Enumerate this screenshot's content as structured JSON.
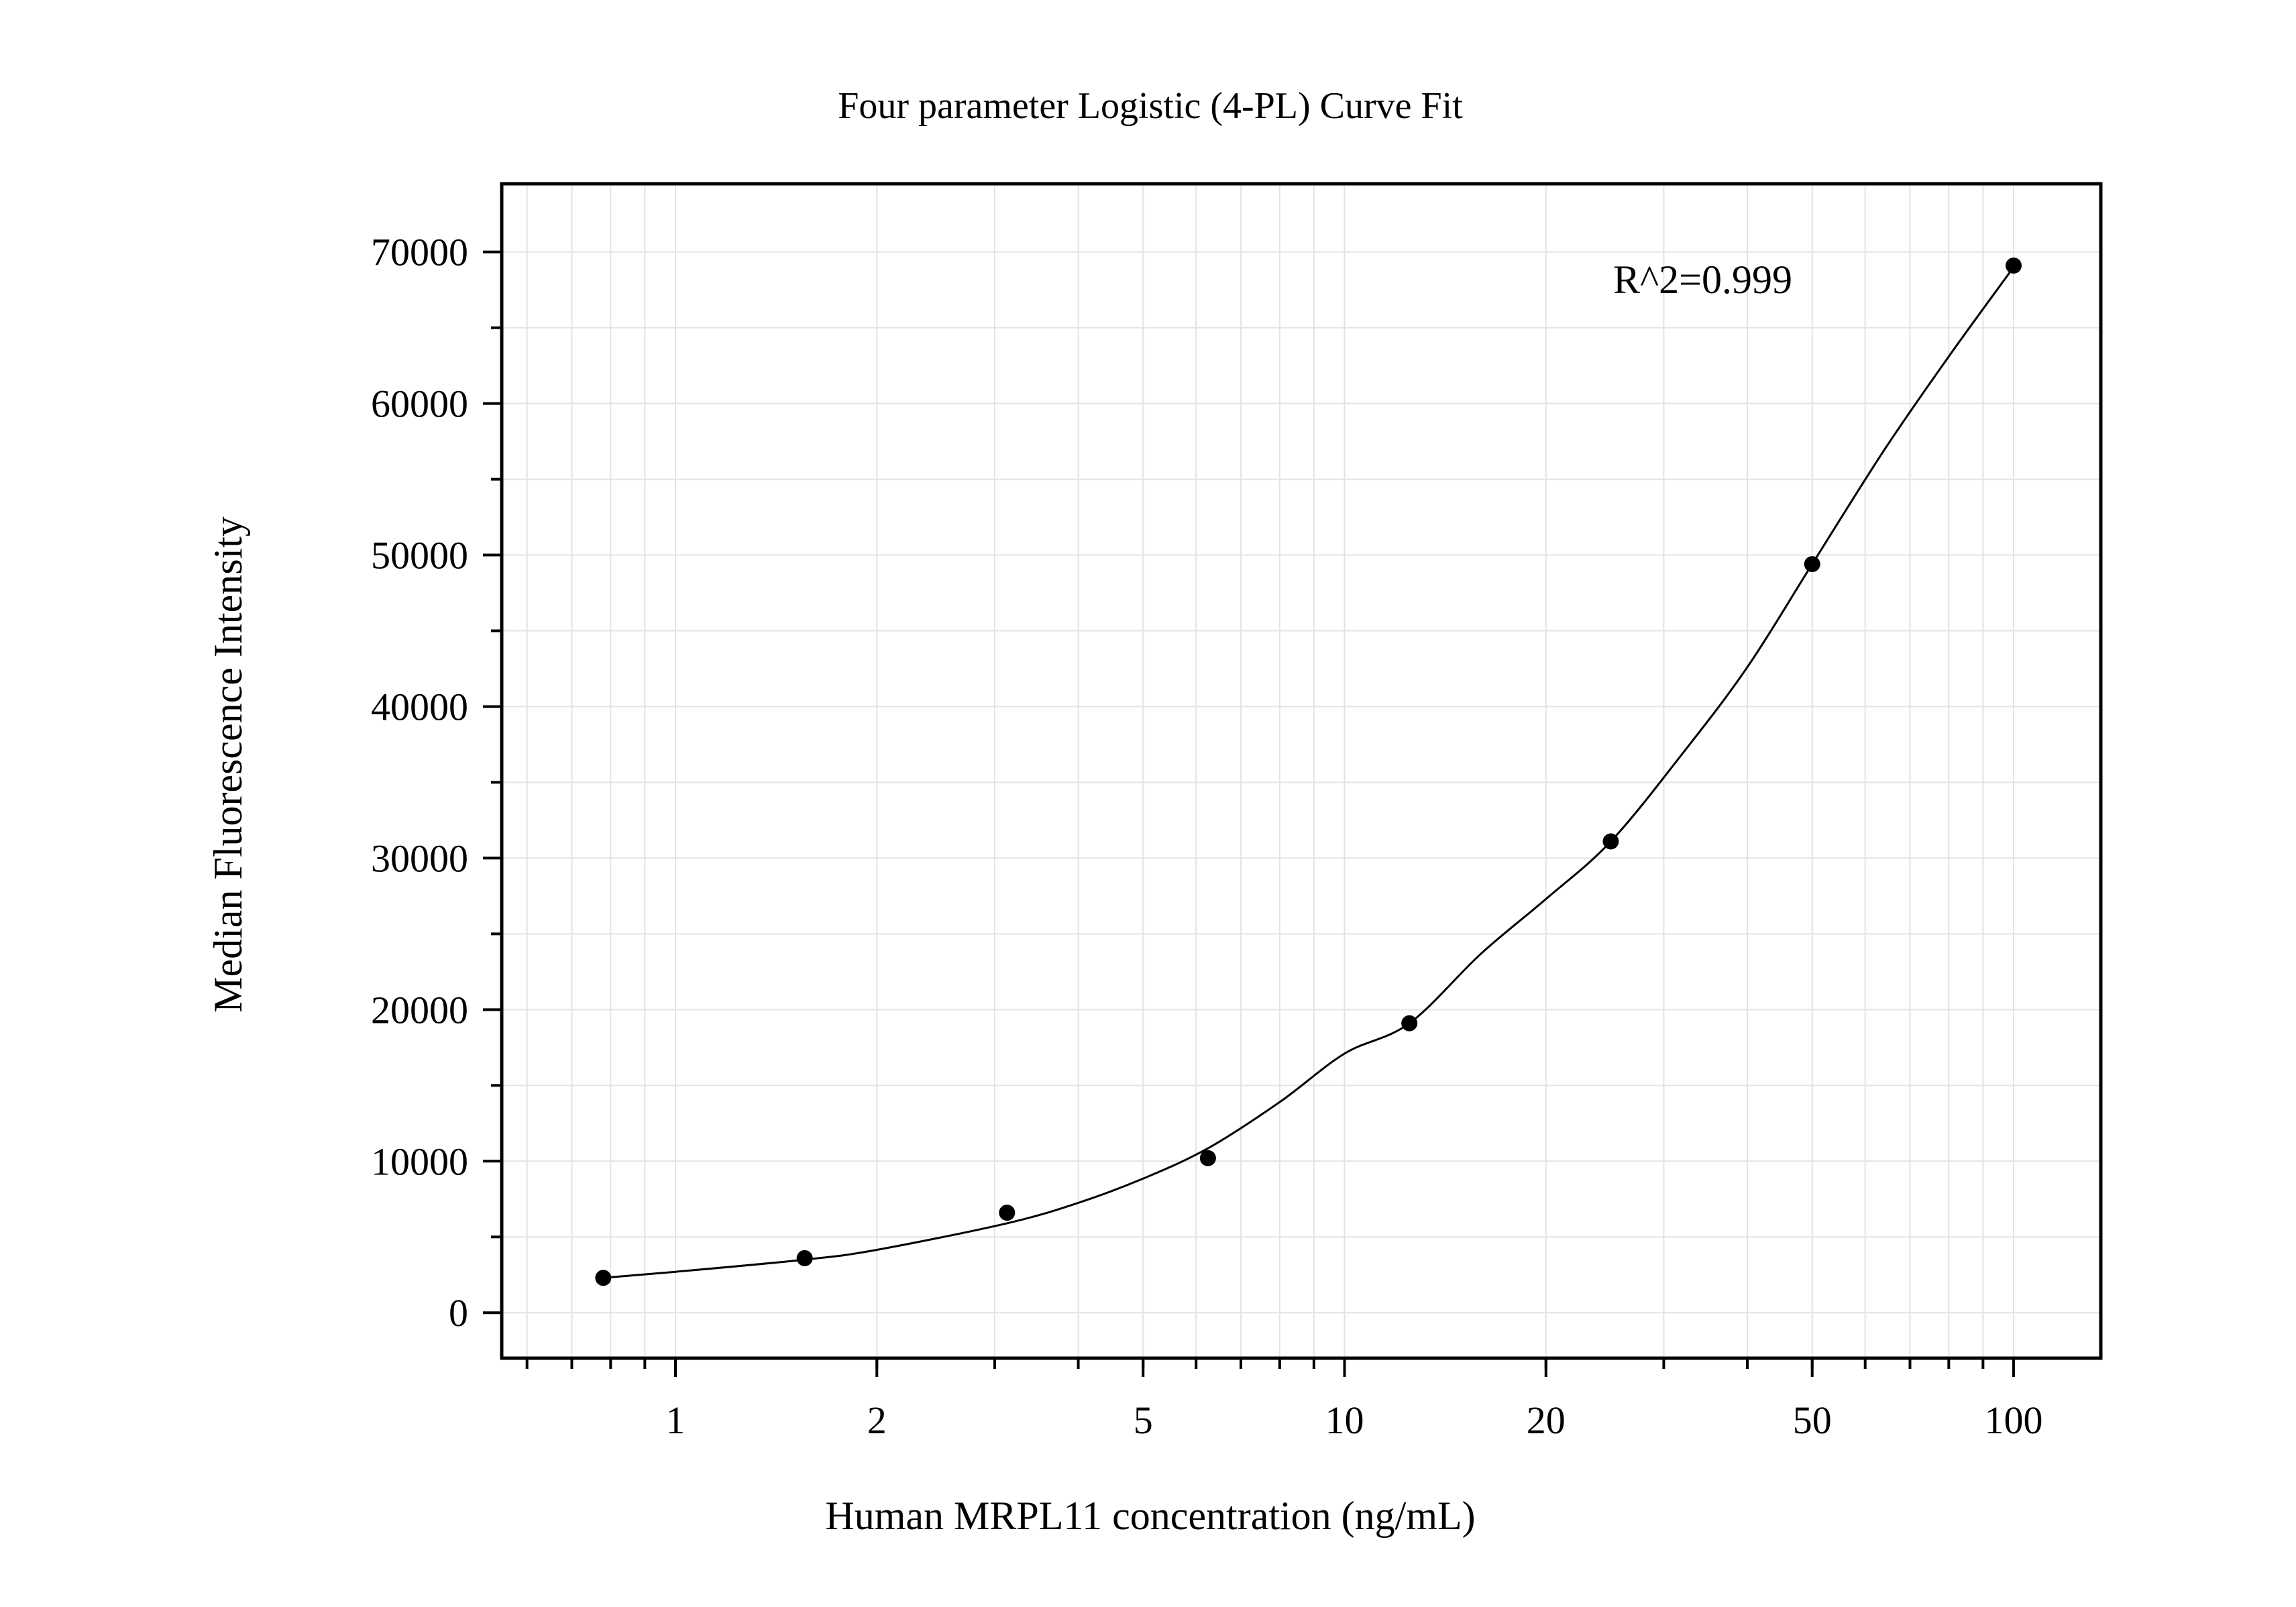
{
  "chart_data": {
    "type": "scatter",
    "title": "Four parameter Logistic (4-PL) Curve Fit",
    "xlabel": "Human MRPL11 concentration (ng/mL)",
    "ylabel": "Median Fluorescence Intensity",
    "x_scale": "log",
    "xlim": [
      0.55,
      135
    ],
    "ylim": [
      -3000,
      74500
    ],
    "x_ticks": [
      1,
      2,
      5,
      10,
      20,
      50,
      100
    ],
    "x_tick_labels": [
      "1",
      "2",
      "5",
      "10",
      "20",
      "50",
      "100"
    ],
    "y_ticks": [
      0,
      10000,
      20000,
      30000,
      40000,
      50000,
      60000,
      70000
    ],
    "y_tick_labels": [
      "0",
      "10000",
      "20000",
      "30000",
      "40000",
      "50000",
      "60000",
      "70000"
    ],
    "grid": true,
    "annotation": "R^2=0.999",
    "series": [
      {
        "type": "scatter",
        "x": [
          0.78,
          1.56,
          3.13,
          6.25,
          12.5,
          25,
          50,
          100
        ],
        "y": [
          2300,
          3600,
          6600,
          10200,
          19100,
          31100,
          49400,
          69100
        ]
      },
      {
        "type": "line",
        "fit": "4-PL",
        "x": [
          0.78,
          1.0,
          1.56,
          2.0,
          3.13,
          4.0,
          5.0,
          6.25,
          8.0,
          10.0,
          12.5,
          16.0,
          20.0,
          25.0,
          32.0,
          40.0,
          50.0,
          64.0,
          80.0,
          100.0
        ],
        "y": [
          2300,
          2700,
          3500,
          4150,
          5900,
          7250,
          8850,
          10850,
          13900,
          17100,
          19100,
          23700,
          27300,
          31100,
          36900,
          42600,
          49400,
          56900,
          63100,
          69000
        ]
      }
    ]
  }
}
